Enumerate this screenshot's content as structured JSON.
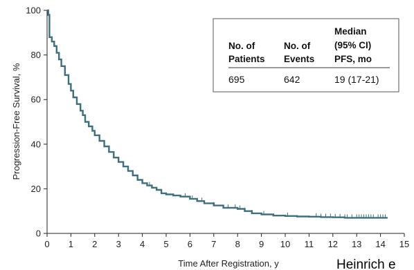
{
  "chart_data": {
    "type": "line",
    "xlabel": "Time After Registration, y",
    "ylabel": "Progression-Free Survival, %",
    "xlim": [
      0,
      15
    ],
    "ylim": [
      0,
      100
    ],
    "x_ticks": [
      "0",
      "1",
      "2",
      "3",
      "4",
      "5",
      "6",
      "7",
      "8",
      "9",
      "10",
      "11",
      "12",
      "13",
      "14",
      "15"
    ],
    "y_ticks": [
      "0",
      "20",
      "40",
      "60",
      "80",
      "100"
    ],
    "grid": false,
    "series": [
      {
        "color": "#3d6f7f",
        "x": [
          0,
          0.05,
          0.1,
          0.2,
          0.3,
          0.4,
          0.5,
          0.6,
          0.75,
          0.9,
          1.0,
          1.1,
          1.25,
          1.4,
          1.5,
          1.6,
          1.75,
          1.9,
          2.0,
          2.2,
          2.4,
          2.6,
          2.8,
          3.0,
          3.2,
          3.4,
          3.6,
          3.8,
          4.0,
          4.2,
          4.4,
          4.6,
          4.8,
          5.0,
          5.3,
          5.6,
          6.0,
          6.3,
          6.6,
          7.0,
          7.4,
          7.8,
          8.0,
          8.3,
          8.6,
          9.0,
          9.5,
          10.0,
          10.5,
          11.0,
          11.5,
          12.0,
          12.5,
          13.0,
          13.5,
          14.0,
          14.3
        ],
        "y": [
          100,
          98,
          88,
          86,
          84,
          81,
          78,
          75,
          71,
          67,
          64,
          61,
          58,
          55,
          53,
          50,
          48,
          46,
          44,
          41.5,
          39,
          36.5,
          34,
          32,
          30,
          28,
          26,
          24,
          22.5,
          21.5,
          20.5,
          19.5,
          18,
          17.5,
          17,
          16.5,
          15.5,
          14.5,
          13.5,
          12.5,
          11.5,
          11.5,
          11,
          10,
          9,
          8.5,
          8,
          7.8,
          7.6,
          7.5,
          7.3,
          7.2,
          7,
          7,
          7,
          7,
          7
        ]
      }
    ],
    "censor_x": [
      3.0,
      4.3,
      4.8,
      5.8,
      6.1,
      6.5,
      7.0,
      7.6,
      7.9,
      8.1,
      8.3,
      8.6,
      9.1,
      10.1,
      11.3,
      11.5,
      11.7,
      11.9,
      12.1,
      12.3,
      12.5,
      12.6,
      12.8,
      13.0,
      13.1,
      13.2,
      13.3,
      13.4,
      13.5,
      13.6,
      13.7,
      13.9,
      14.0,
      14.1,
      14.2
    ],
    "table": {
      "headers": [
        [
          "No. of",
          "Patients"
        ],
        [
          "No. of",
          "Events"
        ],
        [
          "Median",
          "(95% CI)",
          "PFS, mo"
        ]
      ],
      "row": [
        "695",
        "642",
        "19 (17-21)"
      ]
    },
    "caption": "Heinrich e"
  }
}
